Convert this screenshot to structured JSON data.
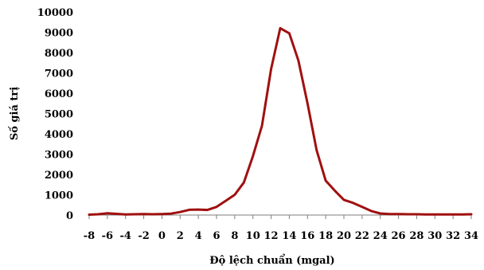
{
  "chart_data": {
    "type": "line",
    "xlabel": "Độ lệch chuẩn (mgal)",
    "ylabel": "Số giá trị",
    "ylim": [
      0,
      10000
    ],
    "yticks": [
      0,
      1000,
      2000,
      3000,
      4000,
      5000,
      6000,
      7000,
      8000,
      9000,
      10000
    ],
    "xlim": [
      -8,
      34
    ],
    "xticks": [
      -8,
      -6,
      -4,
      -2,
      0,
      2,
      4,
      6,
      8,
      10,
      12,
      14,
      16,
      18,
      20,
      22,
      24,
      26,
      28,
      30,
      32,
      34
    ],
    "grid": false,
    "legend": "none",
    "series": [
      {
        "color": "#a01010",
        "x": [
          -8,
          -7,
          -6,
          -5,
          -4,
          -3,
          -2,
          -1,
          0,
          1,
          2,
          3,
          4,
          5,
          6,
          7,
          8,
          9,
          10,
          11,
          12,
          13,
          14,
          15,
          16,
          17,
          18,
          19,
          20,
          21,
          22,
          23,
          24,
          25,
          26,
          27,
          28,
          29,
          30,
          31,
          32,
          33,
          34
        ],
        "values": [
          20,
          40,
          90,
          60,
          30,
          40,
          50,
          40,
          50,
          70,
          150,
          260,
          270,
          250,
          400,
          700,
          1000,
          1600,
          2900,
          4400,
          7200,
          9200,
          8950,
          7600,
          5500,
          3200,
          1700,
          1200,
          750,
          600,
          400,
          200,
          80,
          50,
          50,
          40,
          40,
          30,
          30,
          30,
          30,
          30,
          40
        ]
      }
    ]
  }
}
